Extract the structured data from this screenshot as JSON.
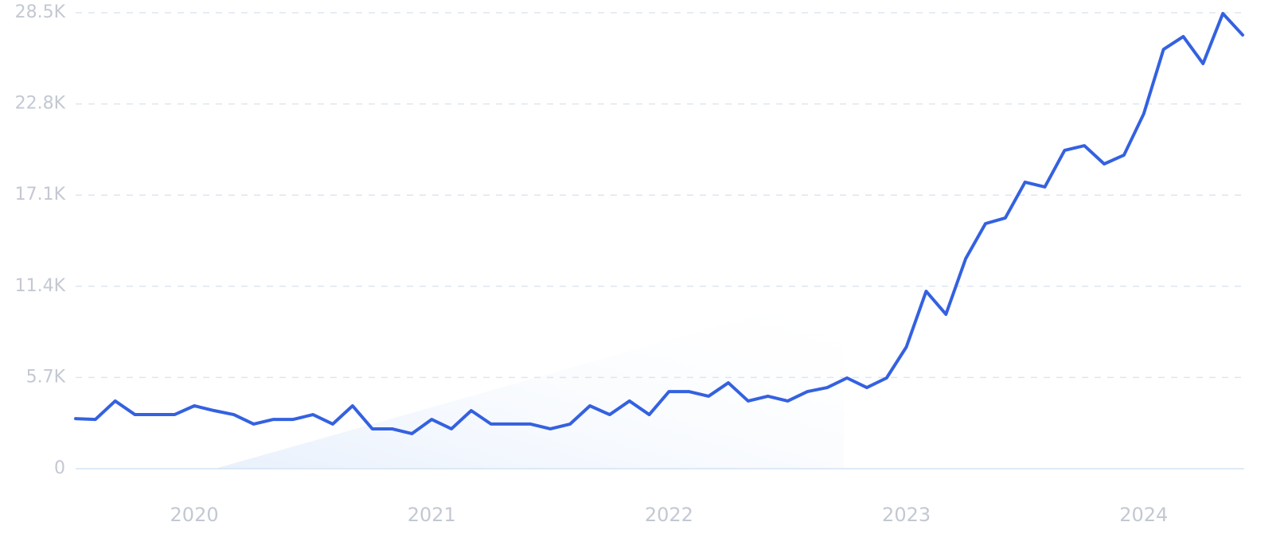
{
  "chart_data": {
    "type": "line",
    "categories": [
      null,
      null,
      null,
      null,
      null,
      null,
      "2020",
      null,
      null,
      null,
      null,
      null,
      null,
      null,
      null,
      null,
      null,
      null,
      "2021",
      null,
      null,
      null,
      null,
      null,
      null,
      null,
      null,
      null,
      null,
      null,
      "2022",
      null,
      null,
      null,
      null,
      null,
      null,
      null,
      null,
      null,
      null,
      null,
      "2023",
      null,
      null,
      null,
      null,
      null,
      null,
      null,
      null,
      null,
      null,
      null,
      "2024",
      null,
      null,
      null,
      null,
      null
    ],
    "series": [
      {
        "color": "#3461e0",
        "values": [
          3130,
          3080,
          4230,
          3380,
          3380,
          3380,
          3930,
          3630,
          3380,
          2790,
          3080,
          3080,
          3380,
          2790,
          3930,
          2490,
          2490,
          2190,
          3080,
          2490,
          3630,
          2790,
          2790,
          2790,
          2490,
          2790,
          3930,
          3380,
          4230,
          3380,
          4820,
          4820,
          4530,
          5370,
          4230,
          4530,
          4230,
          4820,
          5070,
          5670,
          5070,
          5670,
          7610,
          11090,
          9650,
          13130,
          15320,
          15670,
          17910,
          17610,
          19900,
          20190,
          19050,
          19600,
          22180,
          26210,
          27010,
          25320,
          28450,
          27110
        ]
      }
    ],
    "ylim": [
      0,
      28500
    ],
    "yticks": [
      0,
      {
        "value": 5700,
        "label": "5.7K"
      },
      {
        "value": 11400,
        "label": "11.4K"
      },
      {
        "value": 17100,
        "label": "17.1K"
      },
      {
        "value": 22800,
        "label": "22.8K"
      },
      {
        "value": 28500,
        "label": "28.5K"
      }
    ],
    "grid": true
  }
}
